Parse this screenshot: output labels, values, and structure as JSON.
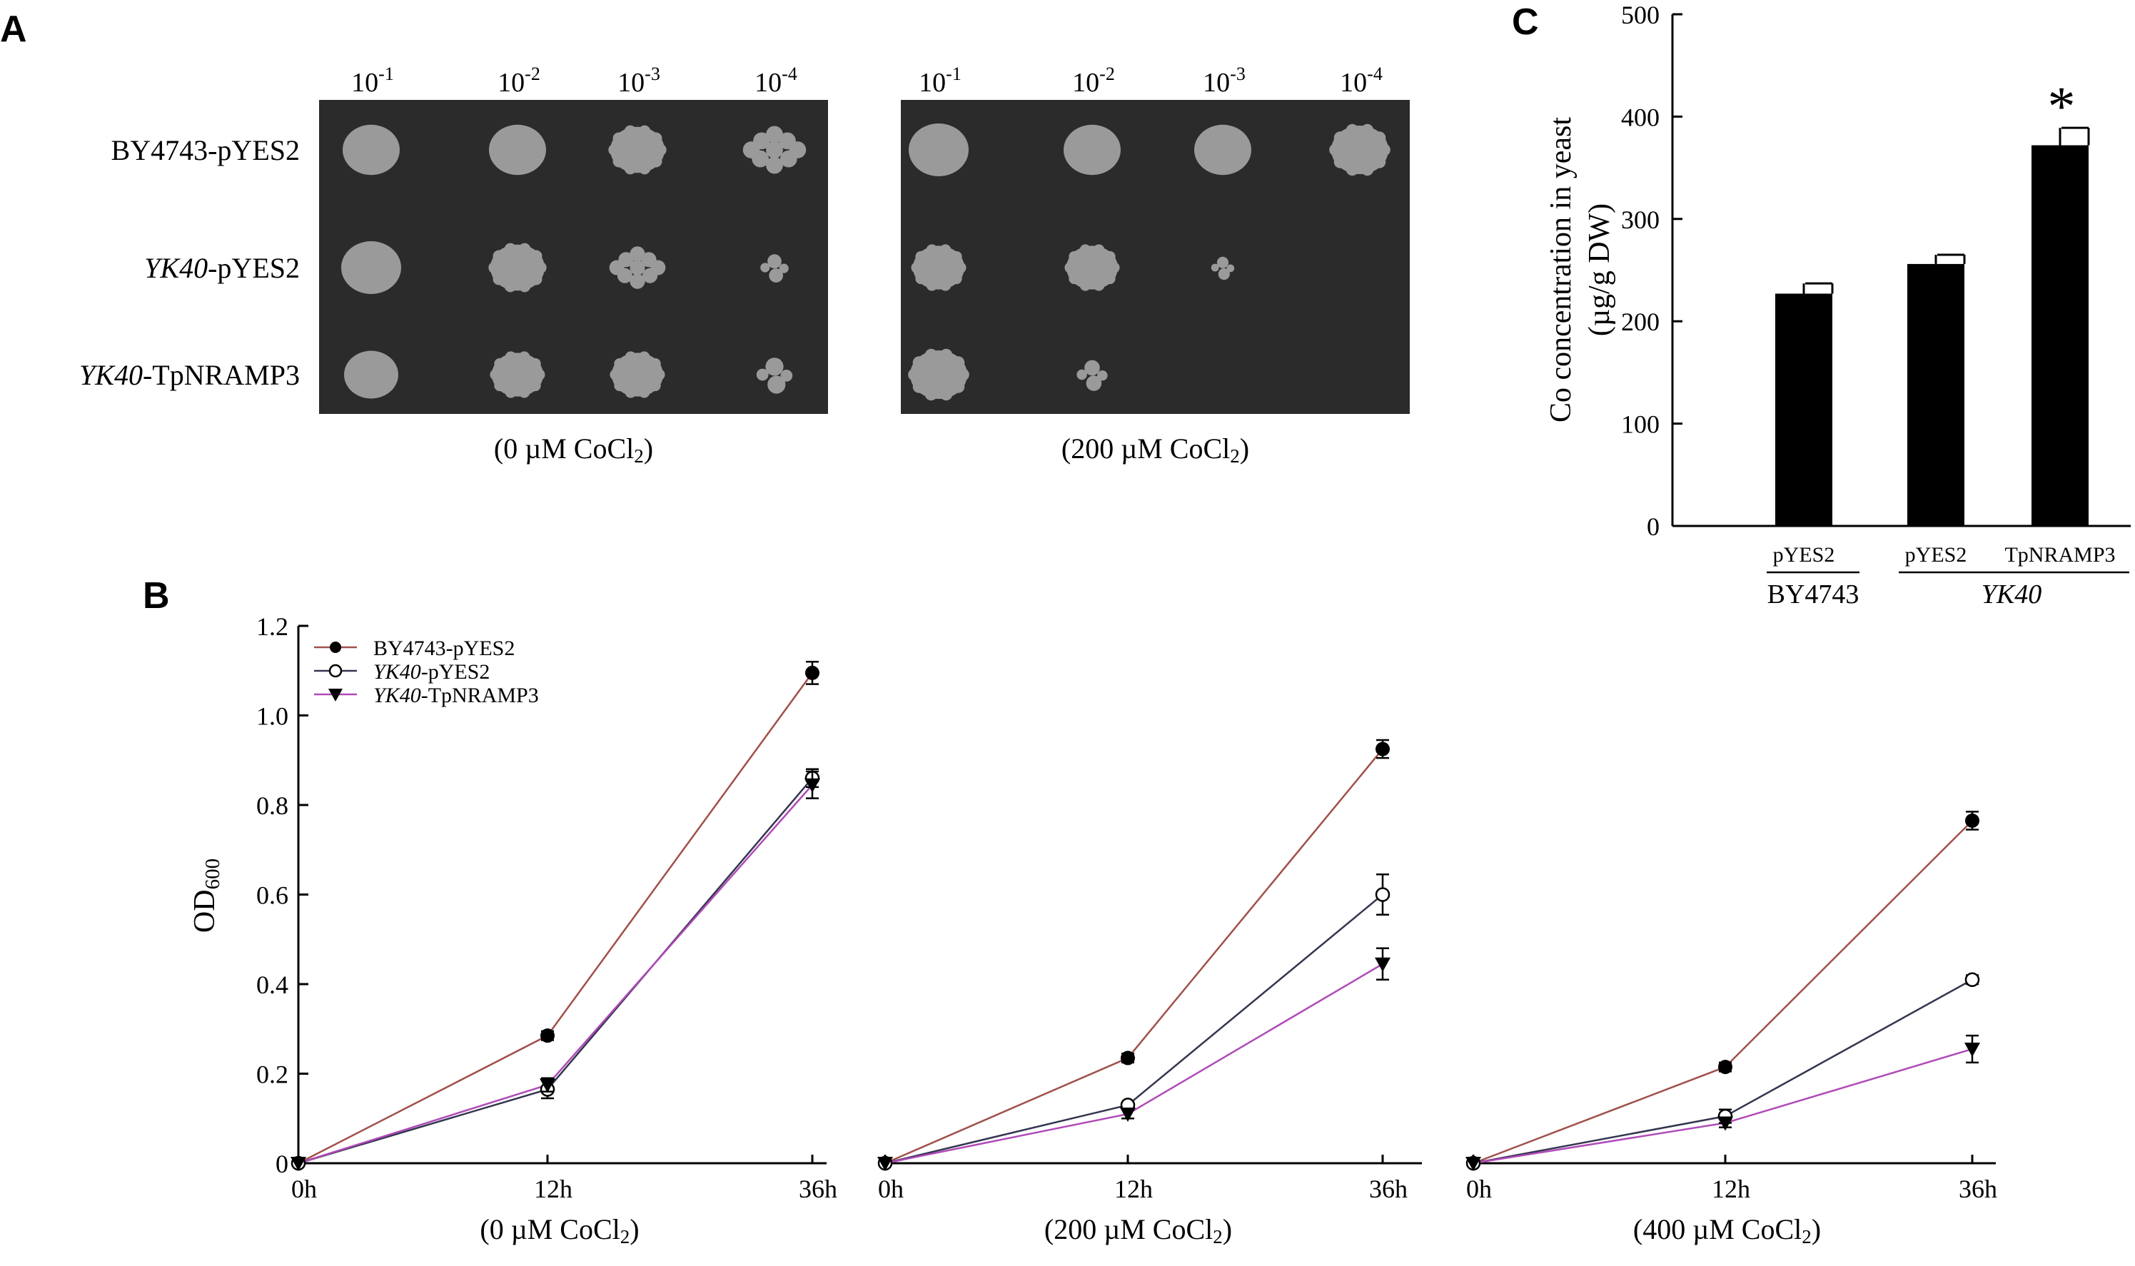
{
  "panel_labels": {
    "a": "A",
    "b": "B",
    "c": "C"
  },
  "spot_assay": {
    "dilution_base": "10",
    "dilutions": [
      "-1",
      "-2",
      "-3",
      "-4"
    ],
    "strains": [
      {
        "italic": "",
        "plain": "BY4743-pYES2"
      },
      {
        "italic": "YK40",
        "plain": "-pYES2"
      },
      {
        "italic": "YK40",
        "plain": "-TpNRAMP3"
      }
    ],
    "conditions": [
      {
        "prefix": "(0 µM CoCl",
        "sub": "2",
        "suffix": ")"
      },
      {
        "prefix": "(200 µM CoCl",
        "sub": "2",
        "suffix": ")"
      }
    ],
    "colors": {
      "plate": "#2b2b2b",
      "colony": "#9a9a9a"
    }
  },
  "chart_data": [
    {
      "type": "bar",
      "panel": "C",
      "ylabel_line1": "Co concentration in yeast",
      "ylabel_line2": "(µg/g DW)",
      "ylim": [
        0,
        500
      ],
      "yticks": [
        "0",
        "100",
        "200",
        "300",
        "400",
        "500"
      ],
      "categories": [
        "pYES2",
        "pYES2",
        "TpNRAMP3"
      ],
      "values": [
        227,
        256,
        372
      ],
      "errors": [
        10,
        9,
        17
      ],
      "significance": [
        "",
        "",
        "*"
      ],
      "groups": [
        {
          "label": "BY4743",
          "italic": false
        },
        {
          "label": "YK40",
          "italic": true
        }
      ],
      "colors": {
        "bar": "#000000"
      }
    },
    {
      "type": "line",
      "panel": "B",
      "ylabel_main": "OD",
      "ylabel_sub": "600",
      "ylim": [
        0,
        1.2
      ],
      "yticks": [
        "0",
        "0.2",
        "0.4",
        "0.6",
        "0.8",
        "1.0",
        "1.2"
      ],
      "x": [
        "0h",
        "12h",
        "36h"
      ],
      "legend": {
        "placement": "top-left",
        "entries": [
          {
            "italic": "",
            "plain": "BY4743-pYES2"
          },
          {
            "italic": "YK40",
            "plain": "-pYES2"
          },
          {
            "italic": "YK40",
            "plain": "-TpNRAMP3"
          }
        ]
      },
      "series_style": [
        {
          "line": "#a0504a",
          "marker": "filled-circle"
        },
        {
          "line": "#33364f",
          "marker": "open-circle"
        },
        {
          "line": "#b04ab8",
          "marker": "filled-triangle-down"
        }
      ],
      "subplots": [
        {
          "xlabel": {
            "prefix": "(0 µM CoCl",
            "sub": "2",
            "suffix": ")"
          },
          "series": [
            {
              "values": [
                0,
                0.285,
                1.095
              ],
              "errors": [
                0,
                0.01,
                0.025
              ]
            },
            {
              "values": [
                0,
                0.165,
                0.86
              ],
              "errors": [
                0,
                0.02,
                0.02
              ]
            },
            {
              "values": [
                0,
                0.175,
                0.845
              ],
              "errors": [
                0,
                0.015,
                0.03
              ]
            }
          ]
        },
        {
          "xlabel": {
            "prefix": "(200 µM CoCl",
            "sub": "2",
            "suffix": ")"
          },
          "series": [
            {
              "values": [
                0,
                0.235,
                0.925
              ],
              "errors": [
                0,
                0.01,
                0.02
              ]
            },
            {
              "values": [
                0,
                0.13,
                0.6
              ],
              "errors": [
                0,
                0.005,
                0.045
              ]
            },
            {
              "values": [
                0,
                0.11,
                0.445
              ],
              "errors": [
                0,
                0.01,
                0.035
              ]
            }
          ]
        },
        {
          "xlabel": {
            "prefix": "(400 µM CoCl",
            "sub": "2",
            "suffix": ")"
          },
          "series": [
            {
              "values": [
                0,
                0.215,
                0.765
              ],
              "errors": [
                0,
                0.01,
                0.02
              ]
            },
            {
              "values": [
                0,
                0.105,
                0.41
              ],
              "errors": [
                0,
                0.015,
                0.01
              ]
            },
            {
              "values": [
                0,
                0.09,
                0.255
              ],
              "errors": [
                0,
                0.01,
                0.03
              ]
            }
          ]
        }
      ]
    }
  ]
}
